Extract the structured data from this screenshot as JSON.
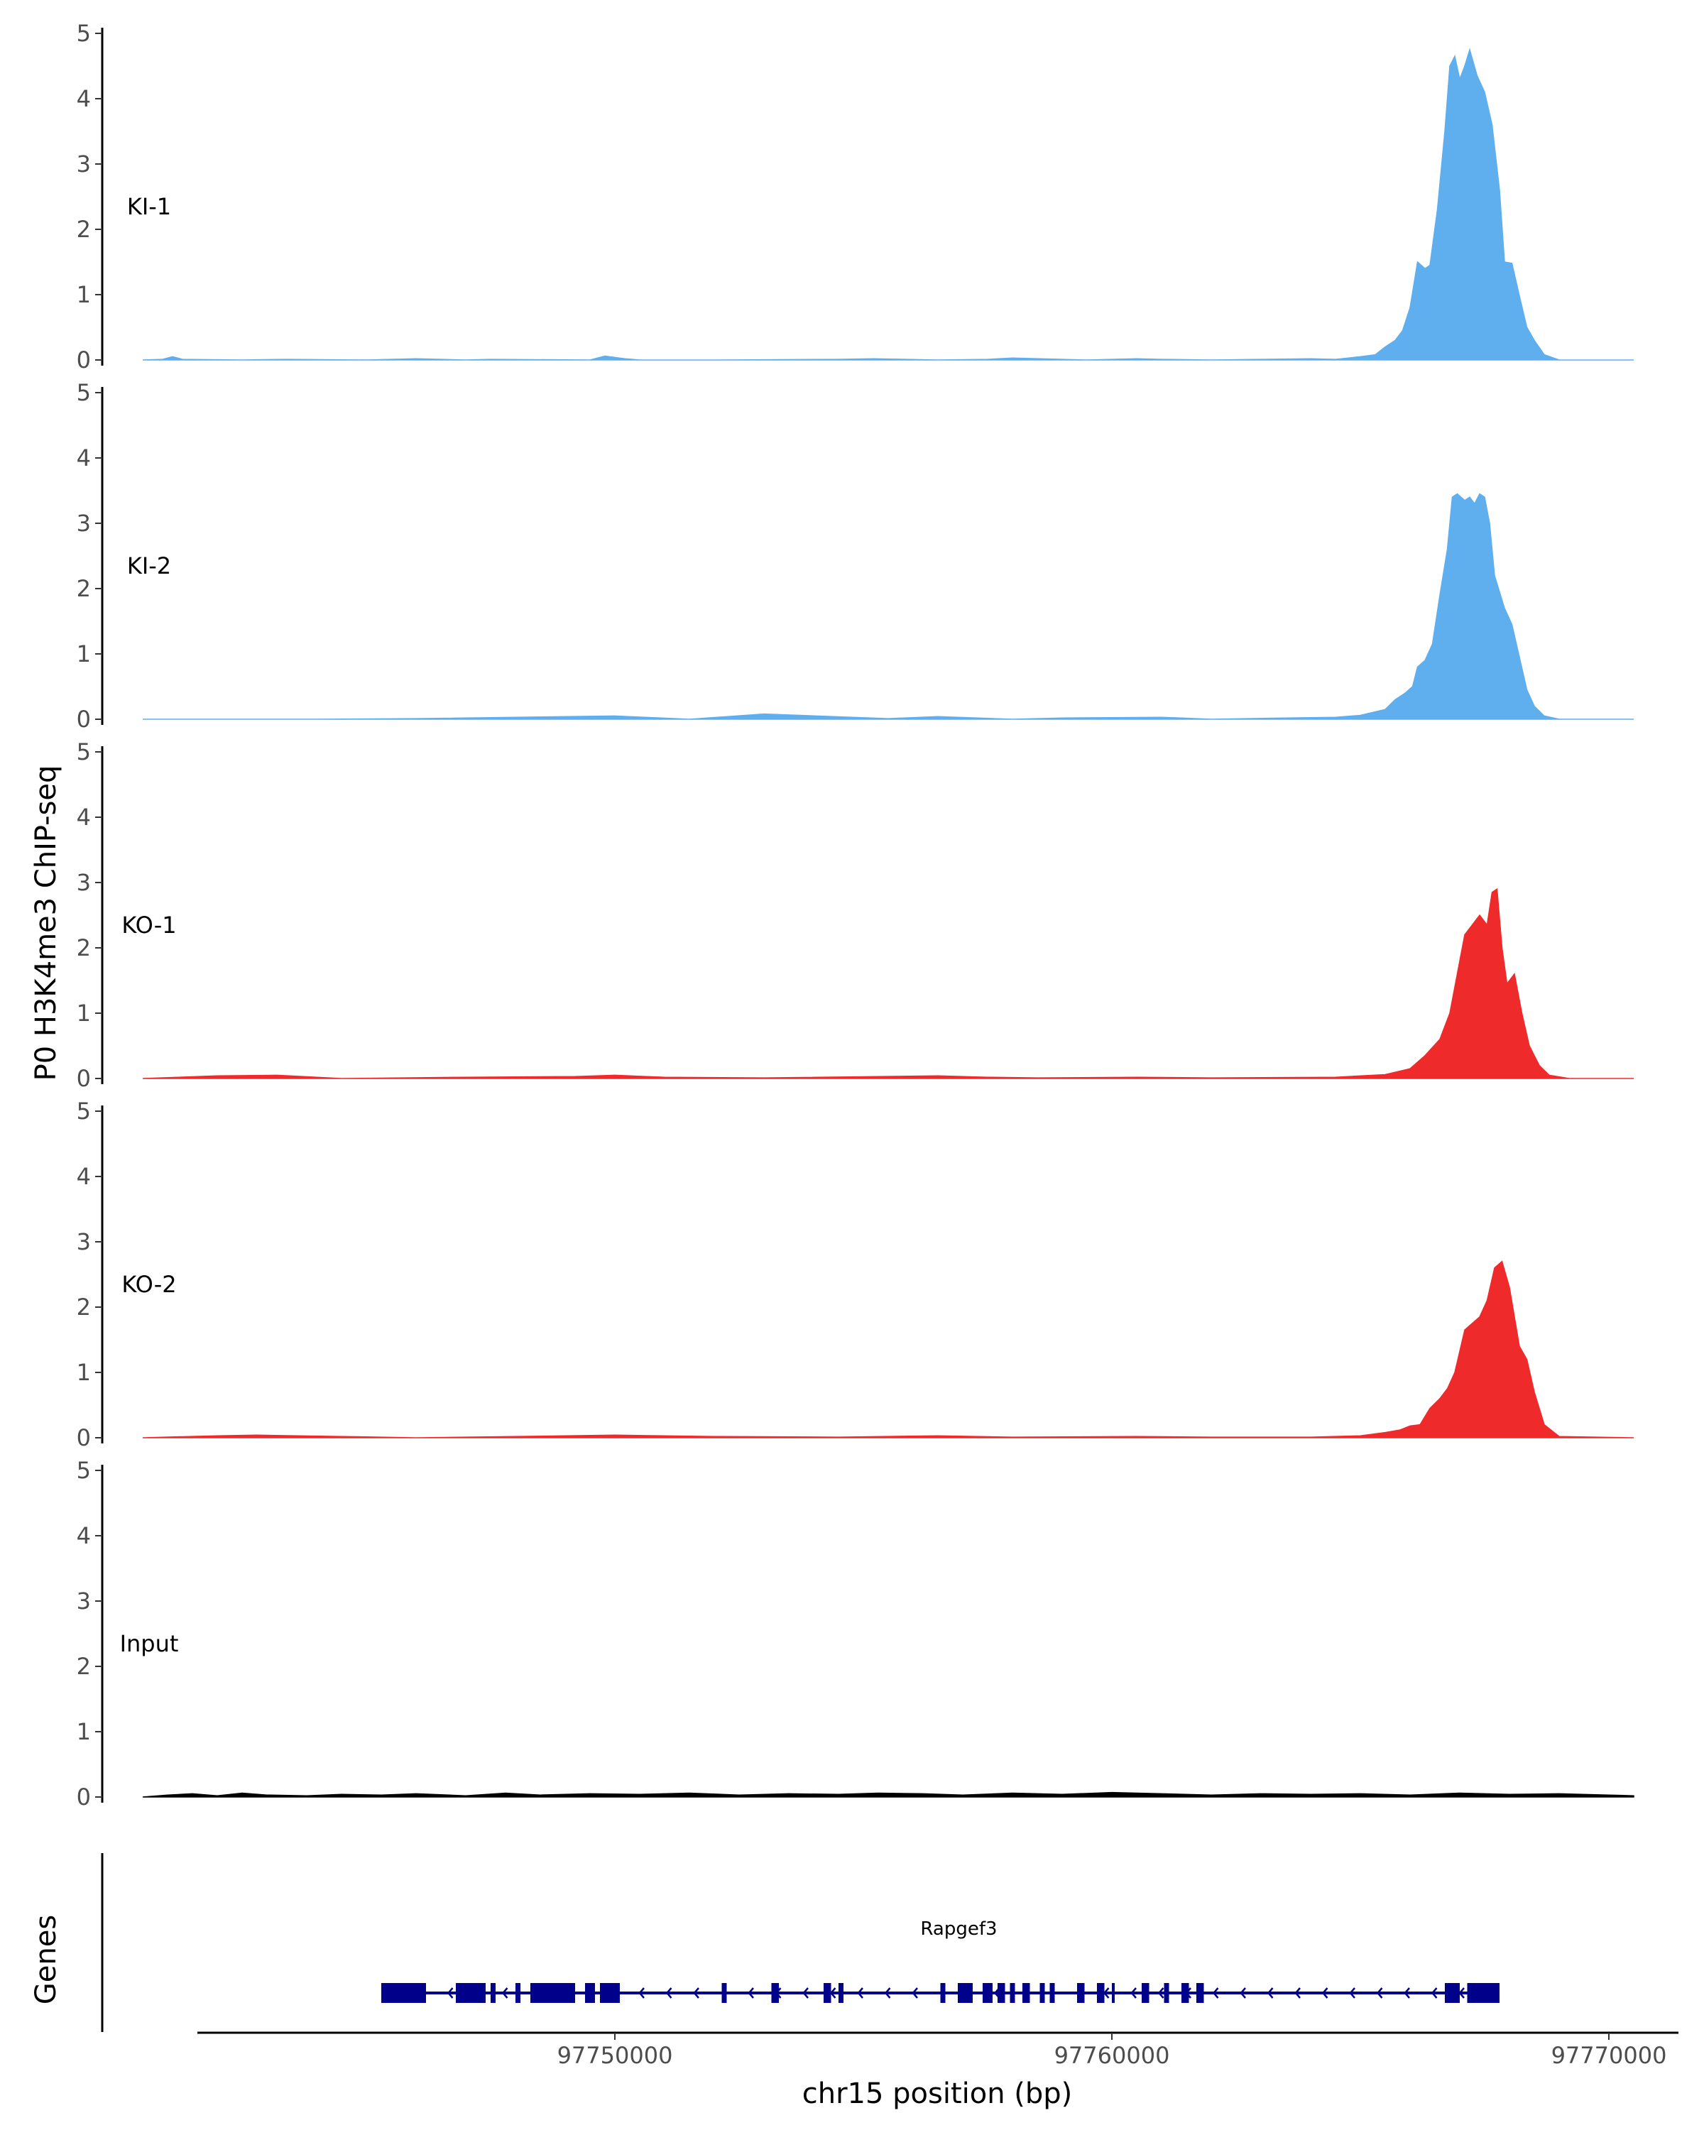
{
  "chart_data": {
    "type": "area",
    "ylabel": "P0 H3K4me3 ChIP-seq",
    "xlabel": "chr15 position (bp)",
    "ylim": [
      0,
      5
    ],
    "yticks": [
      0,
      1,
      2,
      3,
      4,
      5
    ],
    "xlim": [
      97740500,
      97770500
    ],
    "xticks": [
      97750000,
      97760000,
      97770000
    ],
    "xtick_labels": [
      "97750000",
      "97760000",
      "97770000"
    ],
    "grid": false,
    "genes_label": "Genes",
    "gene": {
      "name": "Rapgef3",
      "strand": "-",
      "start": 97745300,
      "end": 97767800,
      "color": "#00008b",
      "exons": [
        [
          97745300,
          97746200
        ],
        [
          97746800,
          97747400
        ],
        [
          97747500,
          97747600
        ],
        [
          97748000,
          97748100
        ],
        [
          97748300,
          97749200
        ],
        [
          97749400,
          97749600
        ],
        [
          97749700,
          97750100
        ],
        [
          97752150,
          97752250
        ],
        [
          97753150,
          97753300
        ],
        [
          97754200,
          97754350
        ],
        [
          97754500,
          97754600
        ],
        [
          97756550,
          97756650
        ],
        [
          97756900,
          97757200
        ],
        [
          97757400,
          97757600
        ],
        [
          97757700,
          97757850
        ],
        [
          97757950,
          97758050
        ],
        [
          97758200,
          97758350
        ],
        [
          97758550,
          97758650
        ],
        [
          97758750,
          97758850
        ],
        [
          97759300,
          97759450
        ],
        [
          97759700,
          97759850
        ],
        [
          97760000,
          97760050
        ],
        [
          97760600,
          97760750
        ],
        [
          97761050,
          97761150
        ],
        [
          97761400,
          97761550
        ],
        [
          97761700,
          97761850
        ],
        [
          97766700,
          97767000
        ],
        [
          97767150,
          97767300
        ],
        [
          97767300,
          97767800
        ]
      ]
    },
    "series": [
      {
        "name": "KI-1",
        "color": "#5faeed",
        "x": [
          97740500,
          97740900,
          97741100,
          97741300,
          97742500,
          97743400,
          97745000,
          97746000,
          97747000,
          97747500,
          97749500,
          97749800,
          97750200,
          97750500,
          97752000,
          97754500,
          97755200,
          97756500,
          97757500,
          97758000,
          97759500,
          97760500,
          97761000,
          97762000,
          97763000,
          97764000,
          97764500,
          97765000,
          97765300,
          97765500,
          97765700,
          97765850,
          97766000,
          97766150,
          97766300,
          97766400,
          97766550,
          97766700,
          97766800,
          97766900,
          97767000,
          97767100,
          97767200,
          97767350,
          97767500,
          97767650,
          97767800,
          97767900,
          97768050,
          97768200,
          97768350,
          97768500,
          97768700,
          97769000,
          97769500,
          97770500
        ],
        "values": [
          0,
          0.01,
          0.05,
          0.01,
          0,
          0.01,
          0,
          0.02,
          0,
          0.01,
          0,
          0.06,
          0.02,
          0,
          0,
          0.01,
          0.02,
          0,
          0.01,
          0.03,
          0,
          0.02,
          0.01,
          0,
          0.01,
          0.02,
          0.01,
          0.05,
          0.08,
          0.2,
          0.3,
          0.45,
          0.8,
          1.5,
          1.4,
          1.45,
          2.3,
          3.5,
          4.5,
          4.65,
          4.3,
          4.5,
          4.75,
          4.35,
          4.1,
          3.6,
          2.6,
          1.5,
          1.48,
          0.98,
          0.5,
          0.3,
          0.08,
          0,
          0,
          0
        ]
      },
      {
        "name": "KI-2",
        "color": "#5faeed",
        "x": [
          97740500,
          97744000,
          97746000,
          97750000,
          97751500,
          97753000,
          97755500,
          97756500,
          97758000,
          97759000,
          97761000,
          97762000,
          97763500,
          97764500,
          97765000,
          97765500,
          97765700,
          97765900,
          97766050,
          97766150,
          97766300,
          97766450,
          97766600,
          97766750,
          97766850,
          97766950,
          97767100,
          97767200,
          97767300,
          97767400,
          97767500,
          97767600,
          97767700,
          97767900,
          97768050,
          97768200,
          97768350,
          97768500,
          97768700,
          97769000,
          97770500
        ],
        "values": [
          0,
          0,
          0.01,
          0.05,
          0,
          0.08,
          0.01,
          0.04,
          0,
          0.02,
          0.03,
          0,
          0.02,
          0.03,
          0.06,
          0.15,
          0.3,
          0.4,
          0.5,
          0.8,
          0.9,
          1.15,
          1.9,
          2.6,
          3.4,
          3.45,
          3.35,
          3.4,
          3.3,
          3.45,
          3.4,
          3.0,
          2.2,
          1.7,
          1.45,
          0.95,
          0.45,
          0.2,
          0.05,
          0,
          0
        ]
      },
      {
        "name": "KO-1",
        "color": "#ee2a2a",
        "x": [
          97740500,
          97742000,
          97743200,
          97744500,
          97747000,
          97749200,
          97750000,
          97751000,
          97753000,
          97756500,
          97757500,
          97758500,
          97760500,
          97762000,
          97764500,
          97765500,
          97766000,
          97766300,
          97766600,
          97766800,
          97766950,
          97767100,
          97767250,
          97767400,
          97767550,
          97767650,
          97767750,
          97767850,
          97767950,
          97768100,
          97768250,
          97768400,
          97768600,
          97768800,
          97769200,
          97770500
        ],
        "values": [
          0,
          0.04,
          0.05,
          0,
          0.02,
          0.03,
          0.05,
          0.02,
          0.01,
          0.04,
          0.02,
          0.01,
          0.02,
          0.01,
          0.02,
          0.06,
          0.15,
          0.35,
          0.6,
          1.0,
          1.6,
          2.2,
          2.35,
          2.5,
          2.35,
          2.85,
          2.9,
          2.0,
          1.45,
          1.6,
          1.0,
          0.5,
          0.2,
          0.05,
          0,
          0
        ]
      },
      {
        "name": "KO-2",
        "color": "#ee2a2a",
        "x": [
          97740500,
          97742000,
          97742800,
          97744500,
          97746000,
          97748000,
          97750000,
          97752000,
          97754500,
          97756500,
          97758000,
          97760500,
          97762000,
          97764000,
          97765000,
          97765500,
          97765800,
          97766000,
          97766200,
          97766400,
          97766600,
          97766750,
          97766900,
          97767100,
          97767250,
          97767400,
          97767550,
          97767700,
          97767850,
          97768000,
          97768200,
          97768350,
          97768500,
          97768700,
          97769000,
          97770500
        ],
        "values": [
          0,
          0.03,
          0.04,
          0.02,
          0,
          0.02,
          0.04,
          0.02,
          0.01,
          0.03,
          0.01,
          0.02,
          0.01,
          0.01,
          0.03,
          0.08,
          0.12,
          0.18,
          0.2,
          0.45,
          0.6,
          0.75,
          1.0,
          1.65,
          1.75,
          1.85,
          2.1,
          2.6,
          2.7,
          2.3,
          1.4,
          1.2,
          0.7,
          0.2,
          0.02,
          0
        ]
      },
      {
        "name": "Input",
        "color": "#000000",
        "x": [
          97740500,
          97741000,
          97741500,
          97742000,
          97742500,
          97743000,
          97743800,
          97744500,
          97745300,
          97746000,
          97747000,
          97747800,
          97748500,
          97749500,
          97750500,
          97751500,
          97752500,
          97753500,
          97754500,
          97755300,
          97756200,
          97757000,
          97758000,
          97759000,
          97760000,
          97761000,
          97762000,
          97763000,
          97764000,
          97765000,
          97766000,
          97767000,
          97768000,
          97769000,
          97770000,
          97770500
        ],
        "values": [
          0,
          0.03,
          0.05,
          0.02,
          0.06,
          0.03,
          0.02,
          0.04,
          0.03,
          0.05,
          0.02,
          0.06,
          0.03,
          0.05,
          0.04,
          0.06,
          0.03,
          0.05,
          0.04,
          0.06,
          0.05,
          0.03,
          0.06,
          0.04,
          0.07,
          0.05,
          0.03,
          0.05,
          0.04,
          0.05,
          0.03,
          0.06,
          0.04,
          0.05,
          0.03,
          0.02
        ]
      }
    ]
  }
}
